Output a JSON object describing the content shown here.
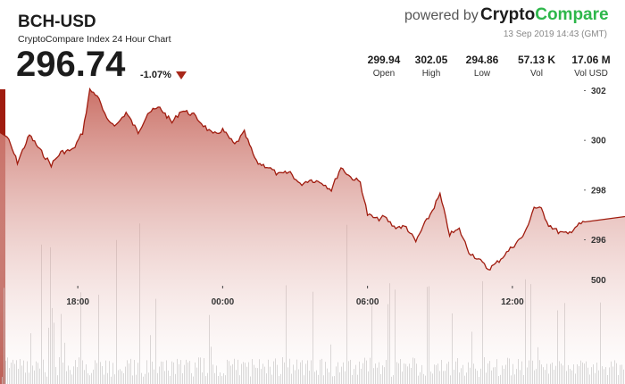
{
  "header": {
    "symbol": "BCH-USD",
    "subtitle": "CryptoCompare Index 24 Hour Chart",
    "price": "296.74",
    "change": "-1.07%",
    "powered_by": "powered by",
    "brand_part1": "Crypto",
    "brand_part2": "Compare",
    "timestamp": "13 Sep 2019 14:43 (GMT)"
  },
  "stats": [
    {
      "value": "299.94",
      "label": "Open"
    },
    {
      "value": "302.05",
      "label": "High"
    },
    {
      "value": "294.86",
      "label": "Low"
    },
    {
      "value": "57.13 K",
      "label": "Vol"
    },
    {
      "value": "17.06 M",
      "label": "Vol USD"
    }
  ],
  "colors": {
    "line": "#a01c0f",
    "fill_top": "#c86a60",
    "fill_bottom": "#ffffff",
    "volume": "#b5b5b5",
    "brand_green": "#2eb74b",
    "down_arrow": "#a8281a"
  },
  "chart_data": {
    "type": "area",
    "price_axis": {
      "ticks": [
        296,
        298,
        300,
        302
      ],
      "tick_labels": [
        "296",
        "298",
        "300",
        "302"
      ],
      "ylim": [
        294.2,
        302.1
      ]
    },
    "volume_axis": {
      "ticks": [
        500
      ],
      "tick_labels": [
        "500"
      ]
    },
    "x_ticks": [
      "18:00",
      "00:00",
      "06:00",
      "12:00"
    ],
    "x_tick_hours": [
      3,
      9,
      15,
      21
    ],
    "x_range_hours": [
      0,
      24
    ],
    "series": [
      {
        "x_hours": [
          0,
          0.5,
          1,
          1.5,
          1.9,
          2.3,
          2.8,
          3.2,
          3.5,
          3.8,
          4.2,
          4.6,
          5.0,
          5.5,
          5.9,
          6.4,
          6.9,
          7.3,
          7.8,
          8.2,
          8.6,
          9.0,
          9.5,
          9.9,
          10.4,
          10.9,
          11.3,
          11.8,
          12.2,
          12.6,
          13.1,
          13.5,
          13.9,
          14.3,
          14.7,
          15.0,
          15.4,
          15.7,
          16.1,
          16.6,
          17.0,
          17.3,
          17.6,
          18.0,
          18.4,
          18.8,
          19.2,
          19.6,
          20.0,
          20.3,
          20.6,
          21.0,
          21.5,
          21.9,
          22.2,
          22.5,
          22.9,
          23.3,
          23.6,
          24.0
        ],
        "price": [
          300.3,
          299.1,
          300.2,
          299.5,
          299.0,
          299.5,
          299.6,
          300.3,
          302.0,
          301.8,
          300.8,
          300.6,
          301.1,
          300.3,
          301.1,
          301.3,
          300.7,
          301.2,
          301.0,
          300.6,
          300.2,
          300.4,
          299.8,
          300.3,
          299.1,
          298.9,
          298.6,
          298.7,
          298.2,
          298.4,
          298.3,
          298.0,
          298.9,
          298.5,
          298.3,
          297.0,
          296.8,
          296.9,
          296.5,
          296.5,
          295.9,
          296.5,
          297.0,
          297.8,
          296.2,
          296.4,
          295.5,
          295.2,
          294.8,
          295.0,
          295.3,
          295.7,
          296.2,
          297.3,
          297.2,
          296.6,
          296.3,
          296.2,
          296.5,
          296.7
        ]
      }
    ]
  }
}
